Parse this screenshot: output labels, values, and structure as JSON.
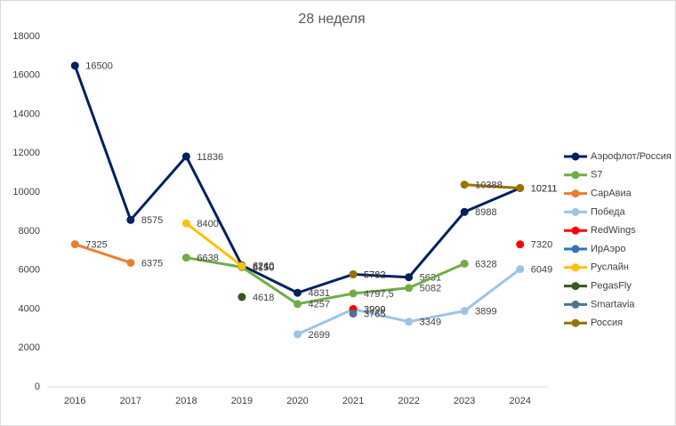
{
  "chart_data": {
    "type": "line",
    "title": "28 неделя",
    "categories": [
      "2016",
      "2017",
      "2018",
      "2019",
      "2020",
      "2021",
      "2022",
      "2023",
      "2024"
    ],
    "ylim": [
      0,
      18000
    ],
    "yticks": [
      0,
      2000,
      4000,
      6000,
      8000,
      10000,
      12000,
      14000,
      16000,
      18000
    ],
    "grid": false,
    "legend": "right",
    "series": [
      {
        "name": "Аэрофлот/Россия",
        "color": "#002060",
        "values": [
          16500,
          8575,
          11836,
          6240,
          4831,
          5782,
          5631,
          8988,
          10211
        ]
      },
      {
        "name": "S7",
        "color": "#70ad47",
        "values": [
          null,
          null,
          6638,
          6150,
          4257,
          4797.5,
          5082,
          6328,
          null
        ],
        "value_labels": [
          null,
          null,
          "6638",
          "6150",
          "4257",
          "4797,5",
          "5082",
          "6328",
          null
        ]
      },
      {
        "name": "СарАвиа",
        "color": "#ed7d31",
        "values": [
          7325,
          6375,
          null,
          null,
          null,
          null,
          null,
          null,
          null
        ]
      },
      {
        "name": "Победа",
        "color": "#9dc3e6",
        "values": [
          null,
          null,
          null,
          null,
          2699,
          3990,
          3349,
          3899,
          6049
        ]
      },
      {
        "name": "RedWings",
        "color": "#ff0000",
        "values": [
          null,
          null,
          null,
          null,
          null,
          3999,
          null,
          null,
          7320
        ]
      },
      {
        "name": "ИрАэро",
        "color": "#2e75b6",
        "values": [
          null,
          null,
          null,
          null,
          null,
          null,
          null,
          null,
          null
        ]
      },
      {
        "name": "Руслайн",
        "color": "#ffc000",
        "values": [
          null,
          null,
          8400,
          6210,
          null,
          null,
          null,
          null,
          null
        ]
      },
      {
        "name": "PegasFly",
        "color": "#375623",
        "values": [
          null,
          null,
          null,
          4618,
          null,
          null,
          null,
          null,
          null
        ]
      },
      {
        "name": "Smartavia",
        "color": "#4f7396",
        "values": [
          null,
          null,
          null,
          null,
          null,
          3765,
          null,
          null,
          null
        ]
      },
      {
        "name": "Россия",
        "color": "#997300",
        "values": [
          null,
          null,
          null,
          null,
          null,
          5782,
          null,
          10388,
          10211
        ]
      }
    ]
  }
}
